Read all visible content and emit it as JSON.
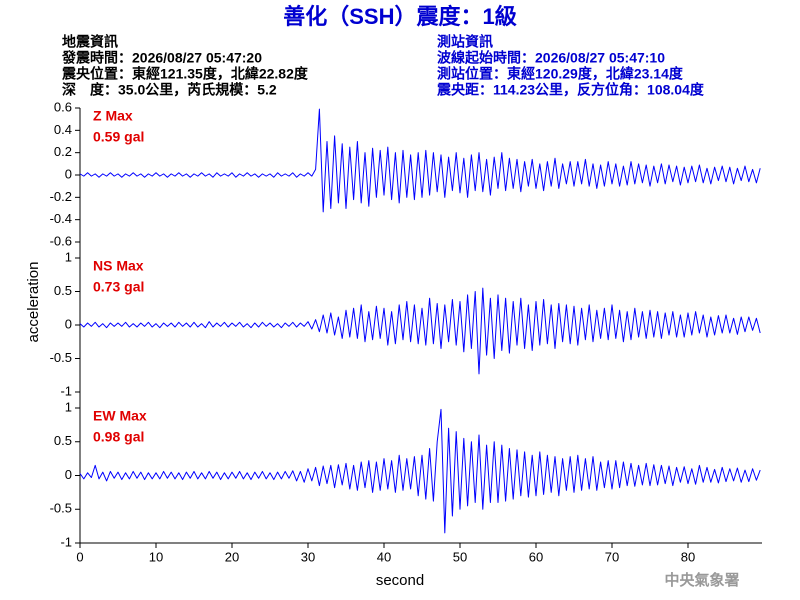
{
  "header": {
    "title": "善化（SSH）震度：1級",
    "left": [
      "地震資訊",
      "發震時間：2026/08/27 05:47:20",
      "震央位置：東經121.35度，北緯22.82度",
      "深　度：35.0公里，芮氏規模：5.2"
    ],
    "right": [
      "測站資訊",
      "波線起始時間：2026/08/27 05:47:10",
      "測站位置：東經120.29度，北緯23.14度",
      "震央距：114.23公里，反方位角：108.04度"
    ]
  },
  "chart_data": {
    "type": "line",
    "xlabel": "second",
    "ylabel": "acceleration",
    "xlim": [
      0,
      90
    ],
    "xticks": [
      0,
      10,
      20,
      30,
      40,
      50,
      60,
      70,
      80
    ],
    "x": [
      0,
      0.5,
      1,
      1.5,
      2,
      2.5,
      3,
      3.5,
      4,
      4.5,
      5,
      5.5,
      6,
      6.5,
      7,
      7.5,
      8,
      8.5,
      9,
      9.5,
      10,
      10.5,
      11,
      11.5,
      12,
      12.5,
      13,
      13.5,
      14,
      14.5,
      15,
      15.5,
      16,
      16.5,
      17,
      17.5,
      18,
      18.5,
      19,
      19.5,
      20,
      20.5,
      21,
      21.5,
      22,
      22.5,
      23,
      23.5,
      24,
      24.5,
      25,
      25.5,
      26,
      26.5,
      27,
      27.5,
      28,
      28.5,
      29,
      29.5,
      30,
      30.5,
      31,
      31.5,
      32,
      32.5,
      33,
      33.5,
      34,
      34.5,
      35,
      35.5,
      36,
      36.5,
      37,
      37.5,
      38,
      38.5,
      39,
      39.5,
      40,
      40.5,
      41,
      41.5,
      42,
      42.5,
      43,
      43.5,
      44,
      44.5,
      45,
      45.5,
      46,
      46.5,
      47,
      47.5,
      48,
      48.5,
      49,
      49.5,
      50,
      50.5,
      51,
      51.5,
      52,
      52.5,
      53,
      53.5,
      54,
      54.5,
      55,
      55.5,
      56,
      56.5,
      57,
      57.5,
      58,
      58.5,
      59,
      59.5,
      60,
      60.5,
      61,
      61.5,
      62,
      62.5,
      63,
      63.5,
      64,
      64.5,
      65,
      65.5,
      66,
      66.5,
      67,
      67.5,
      68,
      68.5,
      69,
      69.5,
      70,
      70.5,
      71,
      71.5,
      72,
      72.5,
      73,
      73.5,
      74,
      74.5,
      75,
      75.5,
      76,
      76.5,
      77,
      77.5,
      78,
      78.5,
      79,
      79.5,
      80,
      80.5,
      81,
      81.5,
      82,
      82.5,
      83,
      83.5,
      84,
      84.5,
      85,
      85.5,
      86,
      86.5,
      87,
      87.5,
      88,
      88.5,
      89,
      89.5
    ],
    "panels": [
      {
        "name": "Z Max",
        "max_label": "0.59 gal",
        "color": "#0000ff",
        "ylim": [
          -0.6,
          0.6
        ],
        "yticks": [
          0.6,
          0.4,
          0.2,
          0,
          -0.2,
          -0.4,
          -0.6
        ],
        "values": [
          0.01,
          -0.01,
          0.02,
          -0.01,
          0.01,
          -0.02,
          0.01,
          -0.01,
          0.02,
          -0.01,
          0.01,
          -0.02,
          0.01,
          -0.01,
          0.02,
          -0.01,
          0.01,
          -0.02,
          0.01,
          -0.01,
          0.02,
          -0.01,
          0.01,
          -0.02,
          0.01,
          -0.01,
          0.02,
          -0.01,
          0.01,
          -0.02,
          0.01,
          -0.01,
          0.02,
          -0.01,
          0.01,
          -0.02,
          0.02,
          -0.01,
          0.01,
          -0.01,
          0.02,
          -0.02,
          0.01,
          -0.01,
          0.02,
          -0.01,
          0.01,
          -0.02,
          0.01,
          -0.01,
          0.01,
          -0.02,
          0.02,
          -0.01,
          0.01,
          -0.01,
          0.02,
          -0.02,
          0.01,
          -0.01,
          0.02,
          -0.01,
          0.05,
          0.59,
          -0.33,
          0.3,
          -0.3,
          0.35,
          -0.25,
          0.28,
          -0.3,
          0.25,
          -0.22,
          0.3,
          -0.25,
          0.2,
          -0.28,
          0.24,
          -0.2,
          0.22,
          -0.18,
          0.25,
          -0.22,
          0.2,
          -0.25,
          0.22,
          -0.2,
          0.18,
          -0.22,
          0.2,
          -0.2,
          0.22,
          -0.18,
          0.2,
          -0.15,
          0.18,
          -0.2,
          0.16,
          -0.14,
          0.2,
          -0.16,
          0.15,
          -0.2,
          0.18,
          -0.14,
          0.2,
          -0.15,
          0.14,
          -0.18,
          0.16,
          -0.12,
          0.2,
          -0.14,
          0.15,
          -0.12,
          0.14,
          -0.15,
          0.12,
          -0.1,
          0.14,
          -0.12,
          0.1,
          -0.14,
          0.12,
          -0.1,
          0.15,
          -0.12,
          0.1,
          -0.08,
          0.12,
          -0.1,
          0.12,
          -0.08,
          0.14,
          -0.1,
          0.1,
          -0.12,
          0.09,
          -0.1,
          0.12,
          -0.08,
          0.1,
          -0.1,
          0.08,
          -0.09,
          0.12,
          -0.08,
          0.1,
          -0.07,
          0.09,
          -0.1,
          0.08,
          -0.07,
          0.1,
          -0.08,
          0.09,
          -0.06,
          0.08,
          -0.09,
          0.07,
          -0.07,
          0.08,
          -0.06,
          0.09,
          -0.07,
          0.06,
          -0.08,
          0.07,
          -0.05,
          0.08,
          -0.06,
          0.07,
          -0.08,
          0.06,
          -0.05,
          0.08,
          -0.06,
          0.05,
          -0.07,
          0.06
        ]
      },
      {
        "name": "NS Max",
        "max_label": "0.73 gal",
        "color": "#0000ff",
        "ylim": [
          -1,
          1
        ],
        "yticks": [
          1,
          0.5,
          0,
          -0.5,
          -1
        ],
        "values": [
          0.02,
          -0.03,
          0.03,
          -0.02,
          0.04,
          -0.03,
          0.02,
          -0.04,
          0.03,
          -0.02,
          0.03,
          -0.02,
          0.04,
          -0.03,
          0.02,
          -0.03,
          0.03,
          -0.02,
          0.04,
          -0.03,
          0.02,
          -0.04,
          0.03,
          -0.02,
          0.03,
          -0.03,
          0.04,
          -0.02,
          0.03,
          -0.03,
          0.04,
          -0.03,
          0.02,
          -0.04,
          0.05,
          -0.03,
          0.03,
          -0.02,
          0.04,
          -0.03,
          0.03,
          -0.02,
          0.04,
          -0.03,
          0.02,
          -0.04,
          0.03,
          -0.03,
          0.04,
          -0.02,
          0.03,
          -0.03,
          0.02,
          -0.04,
          0.03,
          -0.02,
          0.04,
          -0.03,
          0.03,
          -0.02,
          0.05,
          -0.06,
          0.08,
          -0.1,
          0.15,
          -0.12,
          0.18,
          -0.15,
          0.12,
          -0.2,
          0.22,
          -0.18,
          0.25,
          -0.2,
          0.3,
          -0.25,
          0.2,
          -0.22,
          0.28,
          -0.2,
          0.25,
          -0.3,
          0.2,
          -0.28,
          0.3,
          -0.22,
          0.35,
          -0.25,
          0.3,
          -0.28,
          0.25,
          -0.3,
          0.4,
          -0.28,
          0.32,
          -0.35,
          0.3,
          -0.25,
          0.38,
          -0.3,
          0.35,
          -0.4,
          0.45,
          -0.35,
          0.5,
          -0.73,
          0.55,
          -0.45,
          0.4,
          -0.5,
          0.45,
          -0.38,
          0.4,
          -0.42,
          0.35,
          -0.3,
          0.4,
          -0.35,
          0.3,
          -0.38,
          0.35,
          -0.3,
          0.38,
          -0.28,
          0.3,
          -0.35,
          0.32,
          -0.25,
          0.3,
          -0.28,
          0.28,
          -0.3,
          0.25,
          -0.22,
          0.3,
          -0.25,
          0.22,
          -0.2,
          0.25,
          -0.22,
          0.3,
          -0.2,
          0.22,
          -0.25,
          0.2,
          -0.22,
          0.25,
          -0.18,
          0.2,
          -0.2,
          0.22,
          -0.18,
          0.2,
          -0.2,
          0.18,
          -0.15,
          0.2,
          -0.18,
          0.15,
          -0.18,
          0.18,
          -0.15,
          0.2,
          -0.12,
          0.15,
          -0.18,
          0.12,
          -0.15,
          0.14,
          -0.12,
          0.15,
          -0.12,
          0.1,
          -0.14,
          0.12,
          -0.1,
          0.12,
          -0.08,
          0.1,
          -0.12
        ]
      },
      {
        "name": "EW Max",
        "max_label": "0.98 gal",
        "color": "#0000ff",
        "ylim": [
          -1,
          1
        ],
        "yticks": [
          1,
          0.5,
          0,
          -0.5,
          -1
        ],
        "values": [
          0.03,
          -0.05,
          0.04,
          -0.03,
          0.15,
          -0.05,
          0.05,
          -0.08,
          0.06,
          -0.04,
          0.05,
          -0.06,
          0.04,
          -0.05,
          0.06,
          -0.04,
          0.05,
          -0.06,
          0.04,
          -0.05,
          0.04,
          -0.05,
          0.06,
          -0.04,
          0.05,
          -0.05,
          0.04,
          -0.06,
          0.05,
          -0.04,
          0.06,
          -0.05,
          0.04,
          -0.05,
          0.06,
          -0.04,
          0.05,
          -0.06,
          0.04,
          -0.05,
          0.05,
          -0.04,
          0.06,
          -0.05,
          0.04,
          -0.06,
          0.05,
          -0.04,
          0.06,
          -0.05,
          0.04,
          -0.06,
          0.05,
          -0.05,
          0.06,
          -0.04,
          0.07,
          -0.08,
          0.06,
          -0.1,
          0.1,
          -0.08,
          0.12,
          -0.15,
          0.14,
          -0.12,
          0.15,
          -0.18,
          0.16,
          -0.14,
          0.18,
          -0.2,
          0.15,
          -0.22,
          0.2,
          -0.18,
          0.22,
          -0.25,
          0.2,
          -0.22,
          0.25,
          -0.2,
          0.22,
          -0.25,
          0.3,
          -0.22,
          0.25,
          -0.2,
          0.28,
          -0.3,
          0.3,
          -0.35,
          0.4,
          -0.38,
          0.5,
          0.98,
          -0.85,
          0.7,
          -0.6,
          0.65,
          -0.5,
          0.55,
          -0.45,
          0.5,
          -0.4,
          0.6,
          -0.5,
          0.45,
          -0.4,
          0.5,
          -0.4,
          0.45,
          -0.38,
          0.4,
          -0.35,
          0.38,
          -0.3,
          0.35,
          -0.32,
          0.3,
          -0.3,
          0.35,
          -0.28,
          0.3,
          -0.25,
          0.28,
          -0.3,
          0.25,
          -0.22,
          0.28,
          -0.25,
          0.3,
          -0.22,
          0.25,
          -0.2,
          0.28,
          -0.22,
          0.2,
          -0.18,
          0.22,
          -0.2,
          0.22,
          -0.18,
          0.2,
          -0.15,
          0.18,
          -0.16,
          0.15,
          -0.14,
          0.18,
          -0.15,
          0.16,
          -0.14,
          0.15,
          -0.12,
          0.14,
          -0.15,
          0.12,
          -0.1,
          0.13,
          -0.12,
          0.1,
          -0.13,
          0.15,
          -0.1,
          0.12,
          -0.1,
          0.09,
          -0.11,
          0.12,
          -0.09,
          0.1,
          -0.08,
          0.11,
          -0.1,
          0.08,
          -0.09,
          0.1,
          -0.07,
          0.08
        ]
      }
    ]
  },
  "footer": "中央氣象署"
}
